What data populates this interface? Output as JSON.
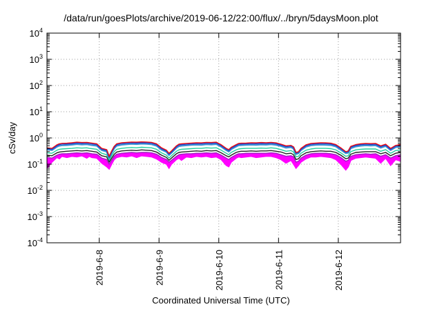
{
  "chart_data": {
    "type": "line",
    "title": "/data/run/goesPlots/archive/2019-06-12/22:00/flux/../bryn/5daysMoon.plot",
    "xlabel": "Coordinated Universal Time (UTC)",
    "ylabel": "cSv/day",
    "yscale": "log",
    "ylim": [
      0.0001,
      10000
    ],
    "xlim": [
      "2019-06-07 03:00",
      "2019-06-12 22:00"
    ],
    "grid": "dotted",
    "legend": "none",
    "x_ticks": [
      "2019-6-8",
      "2019-6-9",
      "2019-6-10",
      "2019-6-11",
      "2019-6-12"
    ],
    "y_ticks": [
      {
        "base": "10",
        "exp": "-4"
      },
      {
        "base": "10",
        "exp": "-3"
      },
      {
        "base": "10",
        "exp": "-2"
      },
      {
        "base": "10",
        "exp": "-1"
      },
      {
        "base": "10",
        "exp": "0"
      },
      {
        "base": "10",
        "exp": "1"
      },
      {
        "base": "10",
        "exp": "2"
      },
      {
        "base": "10",
        "exp": "3"
      },
      {
        "base": "10",
        "exp": "4"
      }
    ],
    "series_colors": [
      "#ee1111",
      "#1a3fd6",
      "#3a8fd0",
      "#20d0a0",
      "#222222",
      "#a020c0",
      "#ff00ff"
    ],
    "x_hours": [
      0,
      2,
      4,
      5,
      6,
      8,
      10,
      12,
      14,
      16,
      17,
      18,
      20,
      22,
      24,
      25,
      26,
      27,
      28,
      30,
      32,
      34,
      36,
      38,
      40,
      42,
      44,
      46,
      48,
      49,
      50,
      52,
      53,
      54,
      56,
      58,
      60,
      62,
      64,
      66,
      68,
      70,
      72,
      73,
      74,
      76,
      77,
      78,
      80,
      82,
      84,
      86,
      88,
      90,
      92,
      94,
      96,
      98,
      99,
      100,
      101,
      102,
      104,
      106,
      108,
      110,
      112,
      114,
      116,
      118,
      120,
      121,
      122,
      124,
      126,
      128,
      130,
      132,
      134,
      136,
      138,
      140,
      142
    ],
    "series": [
      {
        "values": [
          0.42,
          0.4,
          0.55,
          0.6,
          0.62,
          0.63,
          0.66,
          0.69,
          0.67,
          0.68,
          0.66,
          0.64,
          0.6,
          0.4,
          0.36,
          0.2,
          0.32,
          0.48,
          0.6,
          0.66,
          0.68,
          0.7,
          0.69,
          0.71,
          0.7,
          0.68,
          0.6,
          0.42,
          0.34,
          0.26,
          0.32,
          0.5,
          0.58,
          0.6,
          0.62,
          0.64,
          0.66,
          0.65,
          0.68,
          0.67,
          0.69,
          0.55,
          0.4,
          0.36,
          0.44,
          0.56,
          0.62,
          0.63,
          0.64,
          0.66,
          0.65,
          0.67,
          0.66,
          0.68,
          0.65,
          0.58,
          0.5,
          0.52,
          0.46,
          0.28,
          0.3,
          0.4,
          0.55,
          0.62,
          0.64,
          0.66,
          0.65,
          0.63,
          0.56,
          0.42,
          0.3,
          0.32,
          0.48,
          0.56,
          0.6,
          0.62,
          0.61,
          0.62,
          0.5,
          0.58,
          0.4,
          0.52,
          0.56
        ]
      },
      {
        "values": [
          0.4,
          0.38,
          0.52,
          0.57,
          0.6,
          0.6,
          0.62,
          0.66,
          0.64,
          0.65,
          0.63,
          0.61,
          0.57,
          0.38,
          0.34,
          0.19,
          0.3,
          0.46,
          0.57,
          0.63,
          0.65,
          0.67,
          0.66,
          0.68,
          0.67,
          0.65,
          0.57,
          0.4,
          0.32,
          0.25,
          0.3,
          0.48,
          0.55,
          0.57,
          0.59,
          0.61,
          0.63,
          0.62,
          0.65,
          0.64,
          0.66,
          0.52,
          0.38,
          0.34,
          0.42,
          0.53,
          0.59,
          0.6,
          0.61,
          0.63,
          0.62,
          0.64,
          0.63,
          0.65,
          0.62,
          0.55,
          0.48,
          0.5,
          0.44,
          0.27,
          0.29,
          0.38,
          0.52,
          0.59,
          0.61,
          0.63,
          0.62,
          0.6,
          0.53,
          0.4,
          0.29,
          0.31,
          0.46,
          0.53,
          0.57,
          0.59,
          0.58,
          0.59,
          0.48,
          0.55,
          0.38,
          0.5,
          0.53
        ]
      },
      {
        "values": [
          0.36,
          0.34,
          0.46,
          0.5,
          0.52,
          0.53,
          0.55,
          0.58,
          0.56,
          0.57,
          0.55,
          0.53,
          0.5,
          0.34,
          0.3,
          0.17,
          0.27,
          0.4,
          0.5,
          0.55,
          0.57,
          0.59,
          0.58,
          0.6,
          0.59,
          0.57,
          0.5,
          0.35,
          0.29,
          0.22,
          0.27,
          0.42,
          0.48,
          0.5,
          0.52,
          0.54,
          0.55,
          0.54,
          0.57,
          0.56,
          0.58,
          0.46,
          0.34,
          0.3,
          0.37,
          0.47,
          0.52,
          0.53,
          0.54,
          0.55,
          0.54,
          0.56,
          0.55,
          0.57,
          0.54,
          0.49,
          0.42,
          0.44,
          0.39,
          0.24,
          0.26,
          0.34,
          0.46,
          0.52,
          0.54,
          0.55,
          0.54,
          0.53,
          0.47,
          0.35,
          0.26,
          0.27,
          0.4,
          0.47,
          0.5,
          0.52,
          0.51,
          0.52,
          0.42,
          0.49,
          0.34,
          0.44,
          0.47
        ]
      },
      {
        "values": [
          0.27,
          0.26,
          0.34,
          0.37,
          0.38,
          0.39,
          0.4,
          0.42,
          0.41,
          0.42,
          0.4,
          0.39,
          0.37,
          0.26,
          0.23,
          0.14,
          0.21,
          0.3,
          0.37,
          0.4,
          0.42,
          0.43,
          0.42,
          0.44,
          0.43,
          0.42,
          0.37,
          0.27,
          0.22,
          0.17,
          0.21,
          0.31,
          0.35,
          0.37,
          0.38,
          0.39,
          0.4,
          0.4,
          0.42,
          0.41,
          0.42,
          0.34,
          0.26,
          0.23,
          0.28,
          0.35,
          0.38,
          0.39,
          0.4,
          0.4,
          0.4,
          0.41,
          0.4,
          0.42,
          0.4,
          0.36,
          0.31,
          0.33,
          0.29,
          0.19,
          0.2,
          0.26,
          0.34,
          0.38,
          0.4,
          0.4,
          0.4,
          0.39,
          0.35,
          0.27,
          0.2,
          0.21,
          0.3,
          0.35,
          0.37,
          0.38,
          0.38,
          0.38,
          0.31,
          0.36,
          0.26,
          0.33,
          0.35
        ]
      },
      {
        "values": [
          0.22,
          0.21,
          0.27,
          0.29,
          0.3,
          0.31,
          0.32,
          0.33,
          0.32,
          0.33,
          0.32,
          0.31,
          0.29,
          0.21,
          0.19,
          0.12,
          0.17,
          0.24,
          0.29,
          0.32,
          0.33,
          0.34,
          0.33,
          0.35,
          0.34,
          0.33,
          0.29,
          0.22,
          0.18,
          0.14,
          0.17,
          0.25,
          0.28,
          0.29,
          0.3,
          0.31,
          0.32,
          0.31,
          0.33,
          0.32,
          0.33,
          0.27,
          0.21,
          0.19,
          0.22,
          0.28,
          0.3,
          0.31,
          0.31,
          0.32,
          0.31,
          0.32,
          0.32,
          0.33,
          0.31,
          0.29,
          0.25,
          0.26,
          0.23,
          0.15,
          0.16,
          0.21,
          0.27,
          0.3,
          0.31,
          0.32,
          0.31,
          0.31,
          0.28,
          0.22,
          0.16,
          0.17,
          0.24,
          0.28,
          0.29,
          0.3,
          0.3,
          0.3,
          0.25,
          0.28,
          0.21,
          0.26,
          0.28
        ]
      },
      {
        "values": [
          0.18,
          0.17,
          0.22,
          0.24,
          0.25,
          0.25,
          0.26,
          0.27,
          0.26,
          0.27,
          0.26,
          0.25,
          0.24,
          0.17,
          0.15,
          0.1,
          0.14,
          0.2,
          0.24,
          0.26,
          0.27,
          0.28,
          0.27,
          0.28,
          0.28,
          0.27,
          0.24,
          0.18,
          0.15,
          0.12,
          0.14,
          0.2,
          0.23,
          0.24,
          0.25,
          0.25,
          0.26,
          0.26,
          0.27,
          0.26,
          0.27,
          0.22,
          0.17,
          0.15,
          0.18,
          0.23,
          0.25,
          0.25,
          0.26,
          0.26,
          0.26,
          0.26,
          0.26,
          0.27,
          0.26,
          0.23,
          0.2,
          0.21,
          0.19,
          0.12,
          0.13,
          0.17,
          0.22,
          0.25,
          0.26,
          0.26,
          0.26,
          0.25,
          0.23,
          0.18,
          0.13,
          0.14,
          0.2,
          0.23,
          0.24,
          0.25,
          0.24,
          0.25,
          0.2,
          0.23,
          0.17,
          0.21,
          0.23
        ]
      },
      {
        "values": [
          0.07,
          0.12,
          0.18,
          0.16,
          0.2,
          0.18,
          0.2,
          0.19,
          0.21,
          0.17,
          0.2,
          0.18,
          0.17,
          0.11,
          0.08,
          0.065,
          0.1,
          0.15,
          0.18,
          0.2,
          0.19,
          0.21,
          0.18,
          0.21,
          0.2,
          0.19,
          0.16,
          0.12,
          0.1,
          0.07,
          0.1,
          0.15,
          0.17,
          0.14,
          0.19,
          0.18,
          0.2,
          0.19,
          0.2,
          0.18,
          0.19,
          0.15,
          0.09,
          0.08,
          0.12,
          0.17,
          0.19,
          0.18,
          0.19,
          0.2,
          0.18,
          0.19,
          0.2,
          0.2,
          0.18,
          0.15,
          0.11,
          0.14,
          0.1,
          0.07,
          0.09,
          0.12,
          0.16,
          0.19,
          0.19,
          0.2,
          0.19,
          0.18,
          0.15,
          0.1,
          0.06,
          0.08,
          0.14,
          0.17,
          0.18,
          0.19,
          0.18,
          0.17,
          0.11,
          0.17,
          0.09,
          0.15,
          0.13
        ]
      }
    ]
  }
}
